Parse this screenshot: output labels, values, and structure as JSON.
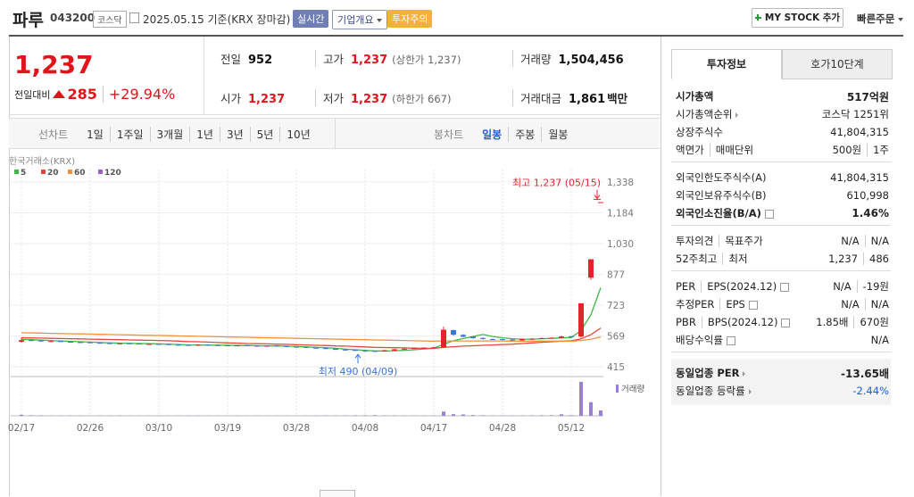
{
  "header": {
    "name": "파루",
    "code": "043200",
    "market": "코스닥",
    "date": "2025.05.15 기준(KRX 장마감)",
    "buttons": [
      "실시간",
      "기업개요",
      "투자주의"
    ],
    "my_stock": "MY STOCK 추가",
    "quick_order": "빠른주문"
  },
  "quote": {
    "price": "1,237",
    "change_label": "전일대비",
    "change": "285",
    "change_rate": "+29.94%"
  },
  "summary": [
    {
      "label": "전일",
      "value": "952"
    },
    {
      "label": "고가",
      "value": "1,237",
      "note": "(상한가 1,237)"
    },
    {
      "label": "거래량",
      "value": "1,504,456"
    },
    {
      "label": "시가",
      "value": "1,237"
    },
    {
      "label": "저가",
      "value": "1,237",
      "note": "(하한가 667)"
    },
    {
      "label": "거래대금",
      "value": "1,861",
      "unit": "백만"
    }
  ],
  "period_tabs": {
    "line_label": "선차트",
    "line": [
      "1일",
      "1주일",
      "3개월",
      "1년",
      "3년",
      "5년",
      "10년"
    ],
    "candle_label": "봉차트",
    "candle": [
      "일봉",
      "주봉",
      "월봉"
    ],
    "candle_active": 0
  },
  "chart_data": {
    "type": "candlestick",
    "source": "한국거래소(KRX)",
    "categories": [
      "02/17",
      null,
      null,
      null,
      null,
      null,
      null,
      "02/26",
      null,
      null,
      null,
      null,
      null,
      null,
      "03/10",
      null,
      null,
      null,
      null,
      null,
      null,
      "03/19",
      null,
      null,
      null,
      null,
      null,
      null,
      "03/28",
      null,
      null,
      null,
      null,
      null,
      null,
      "04/08",
      null,
      null,
      null,
      null,
      null,
      null,
      "04/17",
      null,
      null,
      null,
      null,
      null,
      null,
      "04/28",
      null,
      null,
      null,
      null,
      null,
      null,
      "05/12",
      null,
      null,
      null
    ],
    "open": [
      540,
      548,
      546,
      541,
      543,
      540,
      538,
      537,
      535,
      533,
      530,
      532,
      531,
      527,
      529,
      528,
      525,
      524,
      521,
      525,
      523,
      522,
      519,
      523,
      520,
      517,
      521,
      518,
      515,
      514,
      510,
      508,
      506,
      501,
      499,
      496,
      494,
      491,
      496,
      502,
      506,
      507,
      509,
      512,
      598,
      574,
      566,
      559,
      553,
      553,
      551,
      547,
      552,
      555,
      558,
      559,
      567,
      566,
      860,
      1237
    ],
    "high": [
      560,
      550,
      548,
      545,
      545,
      542,
      540,
      539,
      537,
      535,
      534,
      534,
      533,
      531,
      531,
      530,
      527,
      526,
      527,
      527,
      525,
      524,
      524,
      525,
      522,
      522,
      523,
      520,
      517,
      516,
      512,
      510,
      507,
      503,
      501,
      498,
      495,
      499,
      504,
      507,
      510,
      512,
      515,
      615,
      600,
      578,
      568,
      561,
      556,
      555,
      553,
      556,
      558,
      561,
      563,
      570,
      569,
      732,
      952,
      1237
    ],
    "low": [
      535,
      543,
      540,
      539,
      538,
      536,
      534,
      533,
      531,
      528,
      528,
      528,
      526,
      525,
      525,
      523,
      522,
      520,
      519,
      521,
      519,
      518,
      517,
      517,
      516,
      515,
      515,
      513,
      511,
      508,
      506,
      503,
      498,
      496,
      493,
      490,
      490,
      491,
      495,
      500,
      504,
      505,
      507,
      510,
      570,
      562,
      555,
      551,
      549,
      547,
      545,
      545,
      550,
      553,
      556,
      557,
      560,
      560,
      850,
      1237
    ],
    "close": [
      548,
      545,
      542,
      543,
      540,
      538,
      536,
      535,
      533,
      530,
      532,
      530,
      528,
      529,
      527,
      525,
      524,
      522,
      525,
      523,
      521,
      520,
      522,
      519,
      518,
      520,
      517,
      515,
      513,
      510,
      508,
      505,
      500,
      498,
      495,
      492,
      490,
      497,
      502,
      505,
      508,
      510,
      512,
      600,
      575,
      565,
      558,
      554,
      552,
      550,
      548,
      553,
      555,
      558,
      560,
      566,
      563,
      732,
      952,
      1237
    ],
    "up_color": "#e5232b",
    "down_color": "#3a72d8",
    "series": [
      {
        "name": "5",
        "color": "#41b649",
        "values": [
          552,
          550,
          548,
          546,
          544,
          542,
          540,
          538,
          536,
          534,
          533,
          532,
          531,
          530,
          529,
          528,
          526,
          524,
          524,
          523,
          523,
          522,
          521,
          521,
          520,
          519,
          519,
          518,
          516,
          514,
          512,
          510,
          507,
          503,
          500,
          497,
          494,
          494,
          495,
          497,
          500,
          504,
          507,
          528,
          545,
          556,
          566,
          576,
          566,
          560,
          555,
          553,
          553,
          555,
          557,
          559,
          561,
          596,
          675,
          810
        ]
      },
      {
        "name": "20",
        "color": "#e8453c",
        "values": [
          560,
          559,
          558,
          557,
          556,
          555,
          554,
          553,
          552,
          551,
          550,
          549,
          548,
          547,
          546,
          545,
          543,
          541,
          540,
          538,
          536,
          534,
          533,
          531,
          530,
          529,
          528,
          527,
          525,
          524,
          522,
          521,
          519,
          518,
          516,
          514,
          512,
          511,
          510,
          509,
          508,
          507,
          507,
          512,
          515,
          518,
          520,
          522,
          524,
          526,
          528,
          531,
          534,
          537,
          540,
          543,
          545,
          554,
          575,
          608
        ]
      },
      {
        "name": "60",
        "color": "#f0923a",
        "values": [
          585,
          584,
          583,
          582,
          581,
          580,
          579,
          578,
          577,
          576,
          575,
          574,
          573,
          572,
          571,
          570,
          569,
          568,
          567,
          566,
          565,
          564,
          563,
          562,
          561,
          560,
          559,
          558,
          557,
          556,
          555,
          554,
          553,
          552,
          551,
          550,
          549,
          548,
          547,
          546,
          545,
          544,
          543,
          544,
          544,
          544,
          544,
          544,
          544,
          544,
          543,
          543,
          543,
          543,
          543,
          543,
          543,
          546,
          553,
          564
        ]
      },
      {
        "name": "120",
        "color": "#9a62c8",
        "values": [
          null,
          null,
          null,
          null,
          null,
          null,
          null,
          null,
          null,
          null,
          null,
          null,
          null,
          null,
          null,
          null,
          null,
          null,
          null,
          null,
          null,
          null,
          null,
          null,
          null,
          null,
          null,
          null,
          null,
          null,
          null,
          null,
          null,
          null,
          null,
          null,
          null,
          null,
          null,
          null,
          null,
          null,
          null,
          null,
          null,
          null,
          null,
          null,
          null,
          null,
          null,
          null,
          null,
          null,
          null,
          null,
          null,
          null,
          null,
          null
        ]
      }
    ],
    "ylim": [
      375,
      1400
    ],
    "yticks": [
      415,
      569,
      723,
      877,
      {
        "value": 1030,
        "label": "1,030"
      },
      {
        "value": 1184,
        "label": "1,184"
      },
      {
        "value": 1338,
        "label": "1,338"
      }
    ],
    "grid": true,
    "annotations": {
      "high": "최고 1,237 (05/15)",
      "low": "최저 490 (04/09)"
    },
    "volume_label": "거래량",
    "volume_color": "#9b80cf",
    "volume": [
      320000,
      150000,
      120000,
      100000,
      90000,
      110000,
      80000,
      70000,
      90000,
      80000,
      100000,
      80000,
      70000,
      90000,
      80000,
      70000,
      60000,
      80000,
      90000,
      70000,
      60000,
      70000,
      80000,
      60000,
      70000,
      60000,
      50000,
      60000,
      70000,
      80000,
      90000,
      100000,
      120000,
      110000,
      130000,
      150000,
      180000,
      120000,
      100000,
      90000,
      80000,
      90000,
      110000,
      1200000,
      450000,
      380000,
      200000,
      150000,
      120000,
      100000,
      90000,
      110000,
      130000,
      150000,
      160000,
      420000,
      180000,
      9500000,
      3800000,
      1504456
    ],
    "volume_ylim": [
      0,
      10000000
    ]
  },
  "info_panel": {
    "tabs": [
      "투자정보",
      "호가10단계"
    ],
    "active_tab": 0,
    "groups": [
      [
        {
          "label": "시가총액",
          "value": "517억원",
          "bold": true
        },
        {
          "label": "시가총액순위",
          "value": "코스닥 1251위",
          "arrow": true
        },
        {
          "label": "상장주식수",
          "value": "41,804,315"
        },
        {
          "label": [
            "액면가",
            "매매단위"
          ],
          "value": [
            "500원",
            "1주"
          ]
        }
      ],
      [
        {
          "label": "외국인한도주식수(A)",
          "value": "41,804,315"
        },
        {
          "label": "외국인보유주식수(B)",
          "value": "610,998"
        },
        {
          "label": "외국인소진율(B/A)",
          "value": "1.46%",
          "bold": true,
          "help": true
        }
      ],
      [
        {
          "label": [
            "투자의견",
            "목표주가"
          ],
          "value": [
            "N/A",
            "N/A"
          ]
        },
        {
          "label": [
            "52주최고",
            "최저"
          ],
          "value": [
            "1,237",
            "486"
          ]
        }
      ],
      [
        {
          "label": [
            "PER",
            "EPS(2024.12)"
          ],
          "value": [
            "N/A",
            "-19원"
          ],
          "help": true
        },
        {
          "label": [
            "추정PER",
            "EPS"
          ],
          "value": [
            "N/A",
            "N/A"
          ],
          "help": true
        },
        {
          "label": [
            "PBR",
            "BPS(2024.12)"
          ],
          "value": [
            "1.85배",
            "670원"
          ],
          "help": true
        },
        {
          "label": "배당수익률",
          "value": "N/A",
          "help": true
        }
      ]
    ],
    "sector": [
      {
        "label": "동일업종 PER",
        "value": "-13.65배",
        "bold": true,
        "arrow": true
      },
      {
        "label": "동일업종 등락률",
        "value": "-2.44%",
        "arrow": true,
        "value_color": "#1a5fd8"
      }
    ]
  }
}
